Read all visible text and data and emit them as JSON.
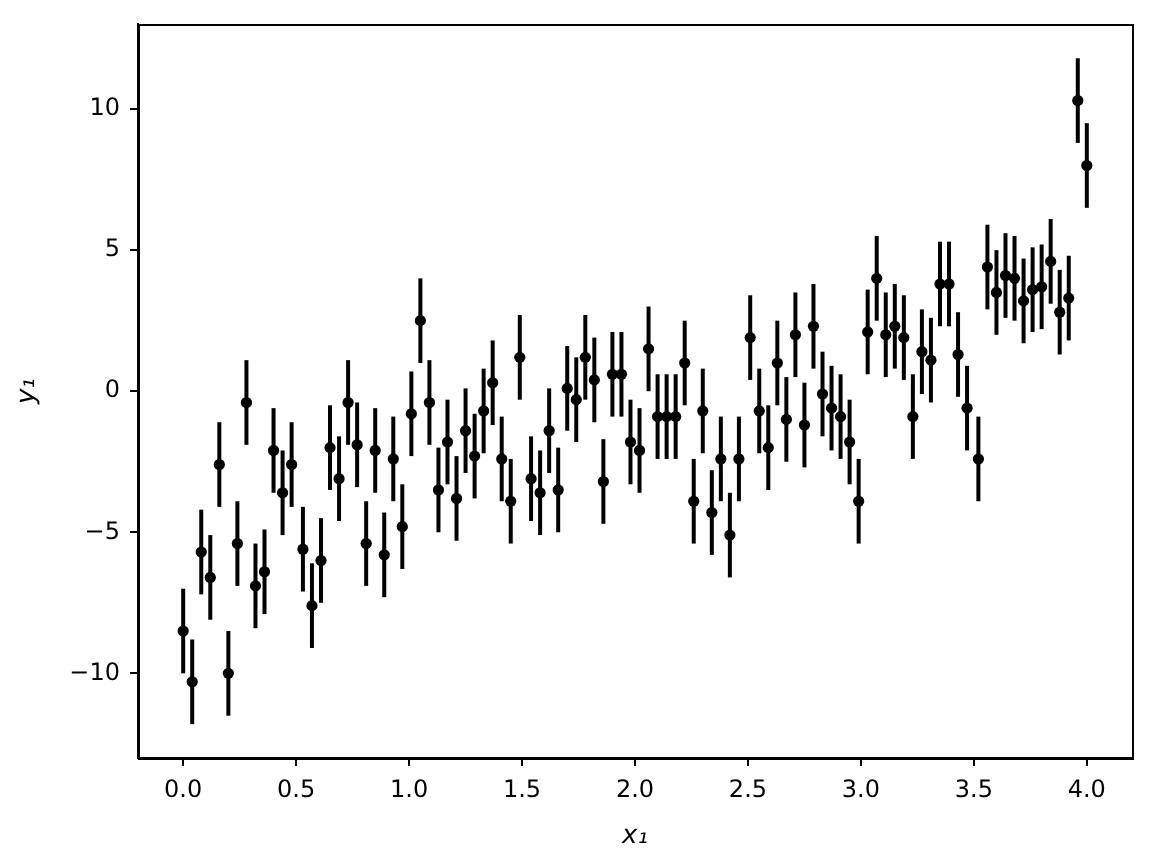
{
  "chart_data": {
    "type": "scatter",
    "xlabel": "x₁",
    "ylabel": "y₁",
    "color": "#000000",
    "marker": "circle",
    "xlim": [
      -0.2,
      4.2
    ],
    "ylim": [
      -13,
      13
    ],
    "xticks": [
      {
        "value": 0,
        "label": "0.0"
      },
      0.5,
      {
        "value": 1,
        "label": "1.0"
      },
      1.5,
      {
        "value": 2,
        "label": "2.0"
      },
      2.5,
      {
        "value": 3,
        "label": "3.0"
      },
      3.5,
      {
        "value": 4,
        "label": "4.0"
      }
    ],
    "yticks": [
      {
        "value": -10,
        "label": "−10"
      },
      {
        "value": -5,
        "label": "−5"
      },
      0,
      5,
      10
    ],
    "x": [
      0,
      0.04,
      0.08,
      0.12,
      0.16,
      0.2,
      0.24,
      0.28,
      0.32,
      0.36,
      0.4,
      0.44,
      0.48,
      0.53,
      0.57,
      0.61,
      0.65,
      0.69,
      0.73,
      0.77,
      0.81,
      0.85,
      0.89,
      0.93,
      0.97,
      1.01,
      1.05,
      1.09,
      1.13,
      1.17,
      1.21,
      1.25,
      1.29,
      1.33,
      1.37,
      1.41,
      1.45,
      1.49,
      1.54,
      1.58,
      1.62,
      1.66,
      1.7,
      1.74,
      1.78,
      1.82,
      1.86,
      1.9,
      1.94,
      1.98,
      2.02,
      2.06,
      2.1,
      2.14,
      2.18,
      2.22,
      2.26,
      2.3,
      2.34,
      2.38,
      2.42,
      2.46,
      2.51,
      2.55,
      2.59,
      2.63,
      2.67,
      2.71,
      2.75,
      2.79,
      2.83,
      2.87,
      2.91,
      2.95,
      2.99,
      3.03,
      3.07,
      3.11,
      3.15,
      3.19,
      3.23,
      3.27,
      3.31,
      3.35,
      3.39,
      3.43,
      3.47,
      3.52,
      3.56,
      3.6,
      3.64,
      3.68,
      3.72,
      3.76,
      3.8,
      3.84,
      3.88,
      3.92,
      3.96,
      4.0
    ],
    "values": [
      -8.5,
      -10.3,
      -5.7,
      -6.6,
      -2.6,
      -10.0,
      -5.4,
      -0.4,
      -6.9,
      -6.4,
      -2.1,
      -3.6,
      -2.6,
      -5.6,
      -7.6,
      -6.0,
      -2.0,
      -3.1,
      -0.4,
      -1.9,
      -5.4,
      -2.1,
      -5.8,
      -2.4,
      -4.8,
      -0.8,
      2.5,
      -0.4,
      -3.5,
      -1.8,
      -3.8,
      -1.4,
      -2.3,
      -0.7,
      0.3,
      -2.4,
      -3.9,
      1.2,
      -3.1,
      -3.6,
      -1.4,
      -3.5,
      0.1,
      -0.3,
      1.2,
      0.4,
      -3.2,
      0.6,
      0.6,
      -1.8,
      -2.1,
      1.5,
      -0.9,
      -0.9,
      -0.9,
      1.0,
      -3.9,
      -0.7,
      -4.3,
      -2.4,
      -5.1,
      -2.4,
      1.9,
      -0.7,
      -2.0,
      1.0,
      -1.0,
      2.0,
      -1.2,
      2.3,
      -0.1,
      -0.6,
      -0.9,
      -1.8,
      -3.9,
      2.1,
      4.0,
      2.0,
      2.3,
      1.9,
      -0.9,
      1.4,
      1.1,
      3.8,
      3.8,
      1.3,
      -0.6,
      -2.4,
      4.4,
      3.5,
      4.1,
      4.0,
      3.2,
      3.6,
      3.7,
      4.6,
      2.8,
      3.3,
      10.3,
      8.0
    ],
    "errors": [
      1.5,
      1.5,
      1.5,
      1.5,
      1.5,
      1.5,
      1.5,
      1.5,
      1.5,
      1.5,
      1.5,
      1.5,
      1.5,
      1.5,
      1.5,
      1.5,
      1.5,
      1.5,
      1.5,
      1.5,
      1.5,
      1.5,
      1.5,
      1.5,
      1.5,
      1.5,
      1.5,
      1.5,
      1.5,
      1.5,
      1.5,
      1.5,
      1.5,
      1.5,
      1.5,
      1.5,
      1.5,
      1.5,
      1.5,
      1.5,
      1.5,
      1.5,
      1.5,
      1.5,
      1.5,
      1.5,
      1.5,
      1.5,
      1.5,
      1.5,
      1.5,
      1.5,
      1.5,
      1.5,
      1.5,
      1.5,
      1.5,
      1.5,
      1.5,
      1.5,
      1.5,
      1.5,
      1.5,
      1.5,
      1.5,
      1.5,
      1.5,
      1.5,
      1.5,
      1.5,
      1.5,
      1.5,
      1.5,
      1.5,
      1.5,
      1.5,
      1.5,
      1.5,
      1.5,
      1.5,
      1.5,
      1.5,
      1.5,
      1.5,
      1.5,
      1.5,
      1.5,
      1.5,
      1.5,
      1.5,
      1.5,
      1.5,
      1.5,
      1.5,
      1.5,
      1.5,
      1.5,
      1.5,
      1.5,
      1.5
    ]
  }
}
